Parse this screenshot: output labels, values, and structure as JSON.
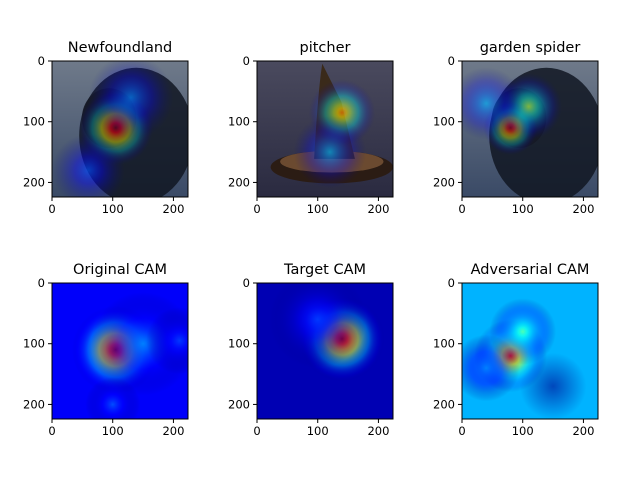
{
  "figure": {
    "panels": [
      {
        "title": "Newfoundland",
        "kind": "overlay",
        "subject": "dog",
        "heat_spots": [
          {
            "cx": 105,
            "cy": 110,
            "r": 62,
            "peak": 1.0
          },
          {
            "cx": 130,
            "cy": 60,
            "r": 70,
            "peak": 0.25
          },
          {
            "cx": 60,
            "cy": 180,
            "r": 60,
            "peak": 0.2
          }
        ]
      },
      {
        "title": "pitcher",
        "kind": "overlay",
        "subject": "pitcher",
        "heat_spots": [
          {
            "cx": 140,
            "cy": 85,
            "r": 55,
            "peak": 0.75
          },
          {
            "cx": 120,
            "cy": 150,
            "r": 60,
            "peak": 0.3
          }
        ]
      },
      {
        "title": "garden spider",
        "kind": "overlay",
        "subject": "dog",
        "heat_spots": [
          {
            "cx": 80,
            "cy": 110,
            "r": 45,
            "peak": 0.95
          },
          {
            "cx": 110,
            "cy": 75,
            "r": 55,
            "peak": 0.55
          },
          {
            "cx": 40,
            "cy": 70,
            "r": 60,
            "peak": 0.3
          }
        ]
      },
      {
        "title": "Original CAM",
        "kind": "cam",
        "background": 0.12,
        "heat_spots": [
          {
            "cx": 105,
            "cy": 110,
            "r": 72,
            "peak": 0.95
          },
          {
            "cx": 150,
            "cy": 100,
            "r": 85,
            "peak": 0.25
          },
          {
            "cx": 100,
            "cy": 200,
            "r": 45,
            "peak": 0.2
          },
          {
            "cx": 210,
            "cy": 95,
            "r": 55,
            "peak": 0.18
          }
        ]
      },
      {
        "title": "Target CAM",
        "kind": "cam",
        "background": 0.05,
        "heat_spots": [
          {
            "cx": 140,
            "cy": 92,
            "r": 70,
            "peak": 0.95
          },
          {
            "cx": 100,
            "cy": 60,
            "r": 80,
            "peak": 0.18
          }
        ]
      },
      {
        "title": "Adversarial CAM",
        "kind": "cam",
        "background": 0.3,
        "heat_spots": [
          {
            "cx": 80,
            "cy": 120,
            "r": 60,
            "peak": 0.85
          },
          {
            "cx": 100,
            "cy": 80,
            "r": 55,
            "peak": 0.45
          },
          {
            "cx": 40,
            "cy": 140,
            "r": 55,
            "peak": 0.25
          }
        ],
        "cool_spots": [
          {
            "cx": 150,
            "cy": 170,
            "r": 55,
            "depth": 0.3
          }
        ]
      }
    ],
    "x_ticks": [
      0,
      100,
      200
    ],
    "y_ticks": [
      0,
      100,
      200
    ],
    "image_size": 224
  }
}
